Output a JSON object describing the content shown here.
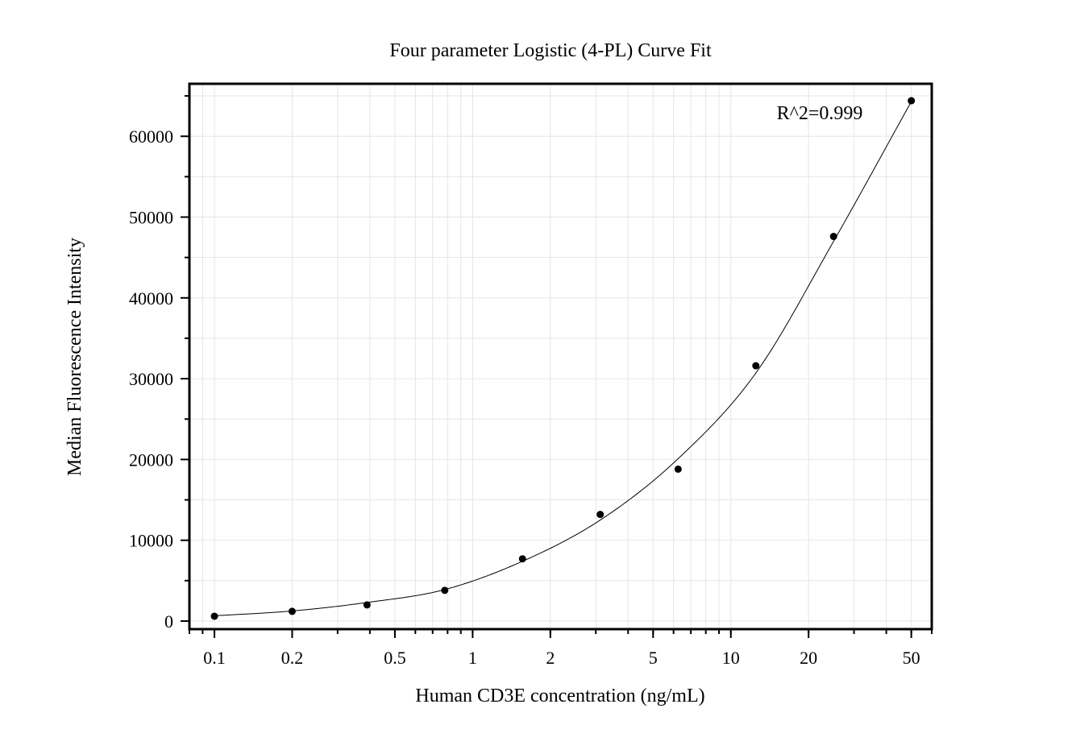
{
  "chart_data": {
    "type": "scatter",
    "title": "Four parameter Logistic (4-PL) Curve Fit",
    "xlabel": "Human CD3E concentration (ng/mL)",
    "ylabel": "Median Fluorescence Intensity",
    "x_scale": "log",
    "xlim": [
      0.08,
      60
    ],
    "ylim": [
      -1000,
      66500
    ],
    "grid": true,
    "x_ticks": [
      0.1,
      0.2,
      0.5,
      1,
      2,
      5,
      10,
      20,
      50
    ],
    "x_tick_labels": [
      "0.1",
      "0.2",
      "0.5",
      "1",
      "2",
      "5",
      "10",
      "20",
      "50"
    ],
    "y_ticks": [
      0,
      10000,
      20000,
      30000,
      40000,
      50000,
      60000
    ],
    "y_tick_labels": [
      "0",
      "10000",
      "20000",
      "30000",
      "40000",
      "50000",
      "60000"
    ],
    "series": [
      {
        "type": "scatter",
        "x": [
          0.1,
          0.2,
          0.39,
          0.78,
          1.56,
          3.12,
          6.25,
          12.5,
          25,
          50
        ],
        "y": [
          600,
          1200,
          2000,
          3800,
          7700,
          13200,
          18800,
          31600,
          47600,
          64400
        ],
        "color": "#000000"
      },
      {
        "type": "line",
        "fit": "4PL",
        "x": [
          0.1,
          0.2,
          0.39,
          0.78,
          1.56,
          3.12,
          6.25,
          12.5,
          25,
          50
        ],
        "y": [
          650,
          1250,
          2300,
          3900,
          7400,
          12500,
          20100,
          30700,
          47000,
          64300
        ],
        "color": "#000000"
      }
    ],
    "annotations": [
      {
        "text": "R^2=0.999"
      }
    ]
  }
}
